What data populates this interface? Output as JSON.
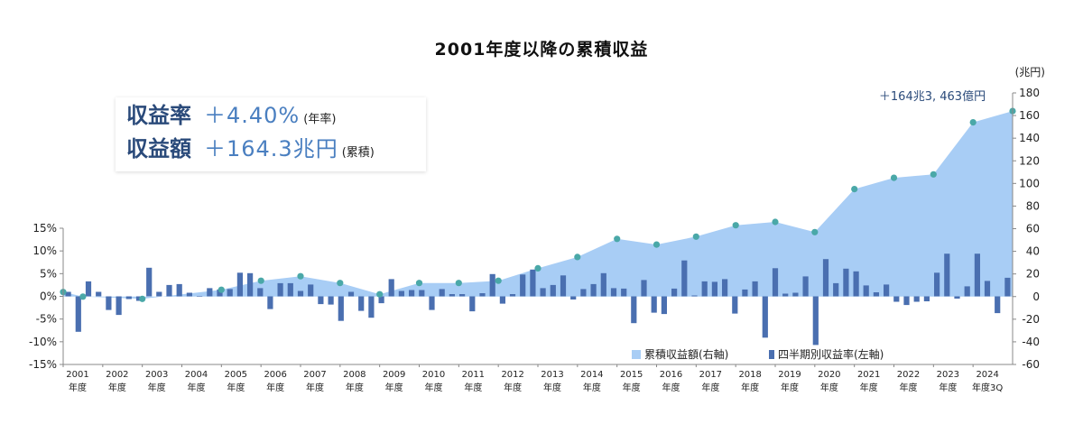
{
  "title": "2001年度以降の累積収益",
  "summary": {
    "rate_label": "収益率",
    "rate_value": "＋4.40%",
    "rate_note": "(年率)",
    "amount_label": "収益額",
    "amount_value": "＋164.3兆円",
    "amount_note": "(累積)"
  },
  "colors": {
    "area": "#a8cdf5",
    "bars": "#4a6fb0",
    "markers": "#4aa8a8",
    "annotation": "#2a4a7a"
  },
  "chart_data": {
    "type": "bar",
    "title": "2001年度以降の累積収益",
    "left_axis": {
      "ylim": [
        -15,
        15
      ],
      "ticks": [
        "15%",
        "10%",
        "5%",
        "0%",
        "-5%",
        "-10%",
        "-15%"
      ]
    },
    "right_axis": {
      "unit": "(兆円)",
      "ylim": [
        -60,
        180
      ],
      "ticks": [
        "180",
        "160",
        "140",
        "120",
        "100",
        "80",
        "60",
        "40",
        "20",
        "0",
        "-20",
        "-40",
        "-60"
      ]
    },
    "fiscal_years": [
      "2001",
      "2002",
      "2003",
      "2004",
      "2005",
      "2006",
      "2007",
      "2008",
      "2009",
      "2010",
      "2011",
      "2012",
      "2013",
      "2014",
      "2015",
      "2016",
      "2017",
      "2018",
      "2019",
      "2020",
      "2021",
      "2022",
      "2023",
      "2024"
    ],
    "year_suffix": "年度",
    "last_year_suffix": "年度3Q",
    "legend": [
      "累積収益額(右軸)",
      "四半期別収益率(左軸)"
    ],
    "annotation": "＋164兆3, 463億円",
    "series": [
      {
        "name": "四半期別収益率(左軸)",
        "axis": "left",
        "values": [
          1.0,
          -7.8,
          3.3,
          1.0,
          -3.0,
          -4.1,
          -0.6,
          -1.0,
          6.3,
          1.0,
          2.5,
          2.7,
          0.8,
          0.1,
          1.8,
          1.5,
          1.6,
          5.2,
          5.1,
          1.8,
          -2.8,
          2.9,
          2.9,
          1.2,
          2.6,
          -1.7,
          -1.8,
          -5.4,
          1.0,
          -3.2,
          -4.7,
          -1.5,
          3.8,
          1.2,
          1.4,
          1.4,
          -3.0,
          1.6,
          0.5,
          0.5,
          -3.3,
          0.7,
          4.9,
          -1.6,
          0.5,
          4.8,
          5.9,
          1.8,
          2.5,
          4.6,
          -0.7,
          1.6,
          2.7,
          5.1,
          1.8,
          1.7,
          -5.9,
          3.6,
          -3.6,
          -3.9,
          1.7,
          7.9,
          0.2,
          3.3,
          3.2,
          3.8,
          -3.8,
          1.5,
          3.3,
          -9.1,
          6.2,
          0.6,
          0.8,
          4.4,
          -10.7,
          8.2,
          2.9,
          6.1,
          5.5,
          2.4,
          0.9,
          2.6,
          -1.2,
          -1.9,
          -1.2,
          -1.1,
          5.2,
          9.4,
          -0.5,
          2.2,
          9.4,
          3.4,
          -3.7,
          4.1
        ]
      },
      {
        "name": "累積収益額(右軸)",
        "axis": "right",
        "points": [
          {
            "fy": 2001.0,
            "value": 4
          },
          {
            "fy": 2001.5,
            "value": 0
          },
          {
            "fy": 2003.0,
            "value": -2
          },
          {
            "fy": 2005.0,
            "value": 6
          },
          {
            "fy": 2006.0,
            "value": 14
          },
          {
            "fy": 2007.0,
            "value": 18
          },
          {
            "fy": 2008.0,
            "value": 12
          },
          {
            "fy": 2009.0,
            "value": 2
          },
          {
            "fy": 2010.0,
            "value": 12
          },
          {
            "fy": 2011.0,
            "value": 12
          },
          {
            "fy": 2012.0,
            "value": 14
          },
          {
            "fy": 2013.0,
            "value": 25
          },
          {
            "fy": 2014.0,
            "value": 35
          },
          {
            "fy": 2015.0,
            "value": 51
          },
          {
            "fy": 2016.0,
            "value": 46
          },
          {
            "fy": 2017.0,
            "value": 53
          },
          {
            "fy": 2018.0,
            "value": 63
          },
          {
            "fy": 2019.0,
            "value": 66
          },
          {
            "fy": 2020.0,
            "value": 57
          },
          {
            "fy": 2021.0,
            "value": 95
          },
          {
            "fy": 2022.0,
            "value": 105
          },
          {
            "fy": 2023.0,
            "value": 108
          },
          {
            "fy": 2024.0,
            "value": 154
          },
          {
            "fy": 2025.0,
            "value": 164
          }
        ]
      }
    ],
    "grid": false,
    "legend_position": "bottom-right"
  }
}
